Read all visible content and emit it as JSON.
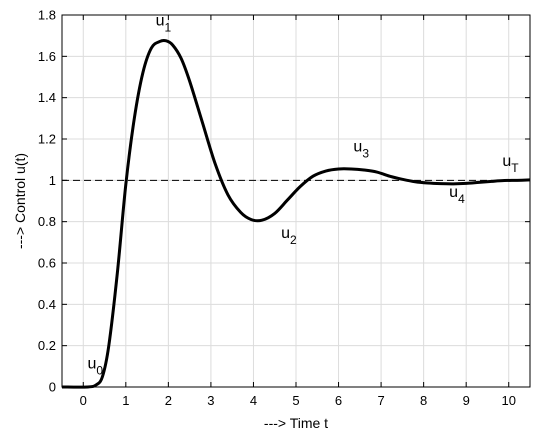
{
  "chart_data": {
    "type": "line",
    "title": "",
    "xlabel": "---> Time t",
    "ylabel": "---> Control u(t)",
    "xlim": [
      -0.5,
      10.5
    ],
    "ylim": [
      0,
      1.8
    ],
    "xticks": [
      0,
      1,
      2,
      3,
      4,
      5,
      6,
      7,
      8,
      9,
      10
    ],
    "yticks": [
      0,
      0.2,
      0.4,
      0.6,
      0.8,
      1,
      1.2,
      1.4,
      1.6,
      1.8
    ],
    "xtick_labels": [
      "0",
      "1",
      "2",
      "3",
      "4",
      "5",
      "6",
      "7",
      "8",
      "9",
      "10"
    ],
    "ytick_labels": [
      "0",
      "0.2",
      "0.4",
      "0.6",
      "0.8",
      "1",
      "1.2",
      "1.4",
      "1.6",
      "1.8"
    ],
    "grid": true,
    "reference_line": {
      "y": 1,
      "style": "dashed"
    },
    "series": [
      {
        "x": [
          -0.5,
          0.1,
          0.3,
          0.45,
          0.6,
          0.8,
          1.0,
          1.2,
          1.4,
          1.6,
          1.8,
          1.95,
          2.1,
          2.3,
          2.5,
          2.8,
          3.1,
          3.4,
          3.7,
          3.95,
          4.2,
          4.5,
          4.8,
          5.1,
          5.4,
          5.7,
          6.0,
          6.3,
          6.6,
          6.9,
          7.2,
          7.5,
          7.8,
          8.1,
          8.4,
          8.7,
          9.0,
          9.3,
          9.6,
          9.9,
          10.2,
          10.5
        ],
        "y": [
          0,
          0,
          0.01,
          0.05,
          0.2,
          0.55,
          0.98,
          1.3,
          1.52,
          1.64,
          1.672,
          1.675,
          1.655,
          1.59,
          1.48,
          1.28,
          1.08,
          0.93,
          0.845,
          0.81,
          0.807,
          0.84,
          0.905,
          0.97,
          1.02,
          1.045,
          1.055,
          1.055,
          1.05,
          1.04,
          1.02,
          1.005,
          0.993,
          0.987,
          0.984,
          0.983,
          0.985,
          0.99,
          0.995,
          0.999,
          1.0,
          1.002
        ]
      }
    ],
    "annotations": [
      {
        "base": "u",
        "sub": "0",
        "x": 0.1,
        "y": 0.09
      },
      {
        "base": "u",
        "sub": "1",
        "x": 1.7,
        "y": 1.75
      },
      {
        "base": "u",
        "sub": "2",
        "x": 4.65,
        "y": 0.72
      },
      {
        "base": "u",
        "sub": "3",
        "x": 6.35,
        "y": 1.14
      },
      {
        "base": "u",
        "sub": "4",
        "x": 8.6,
        "y": 0.92
      },
      {
        "base": "u",
        "sub": "T",
        "x": 9.85,
        "y": 1.07
      }
    ]
  }
}
